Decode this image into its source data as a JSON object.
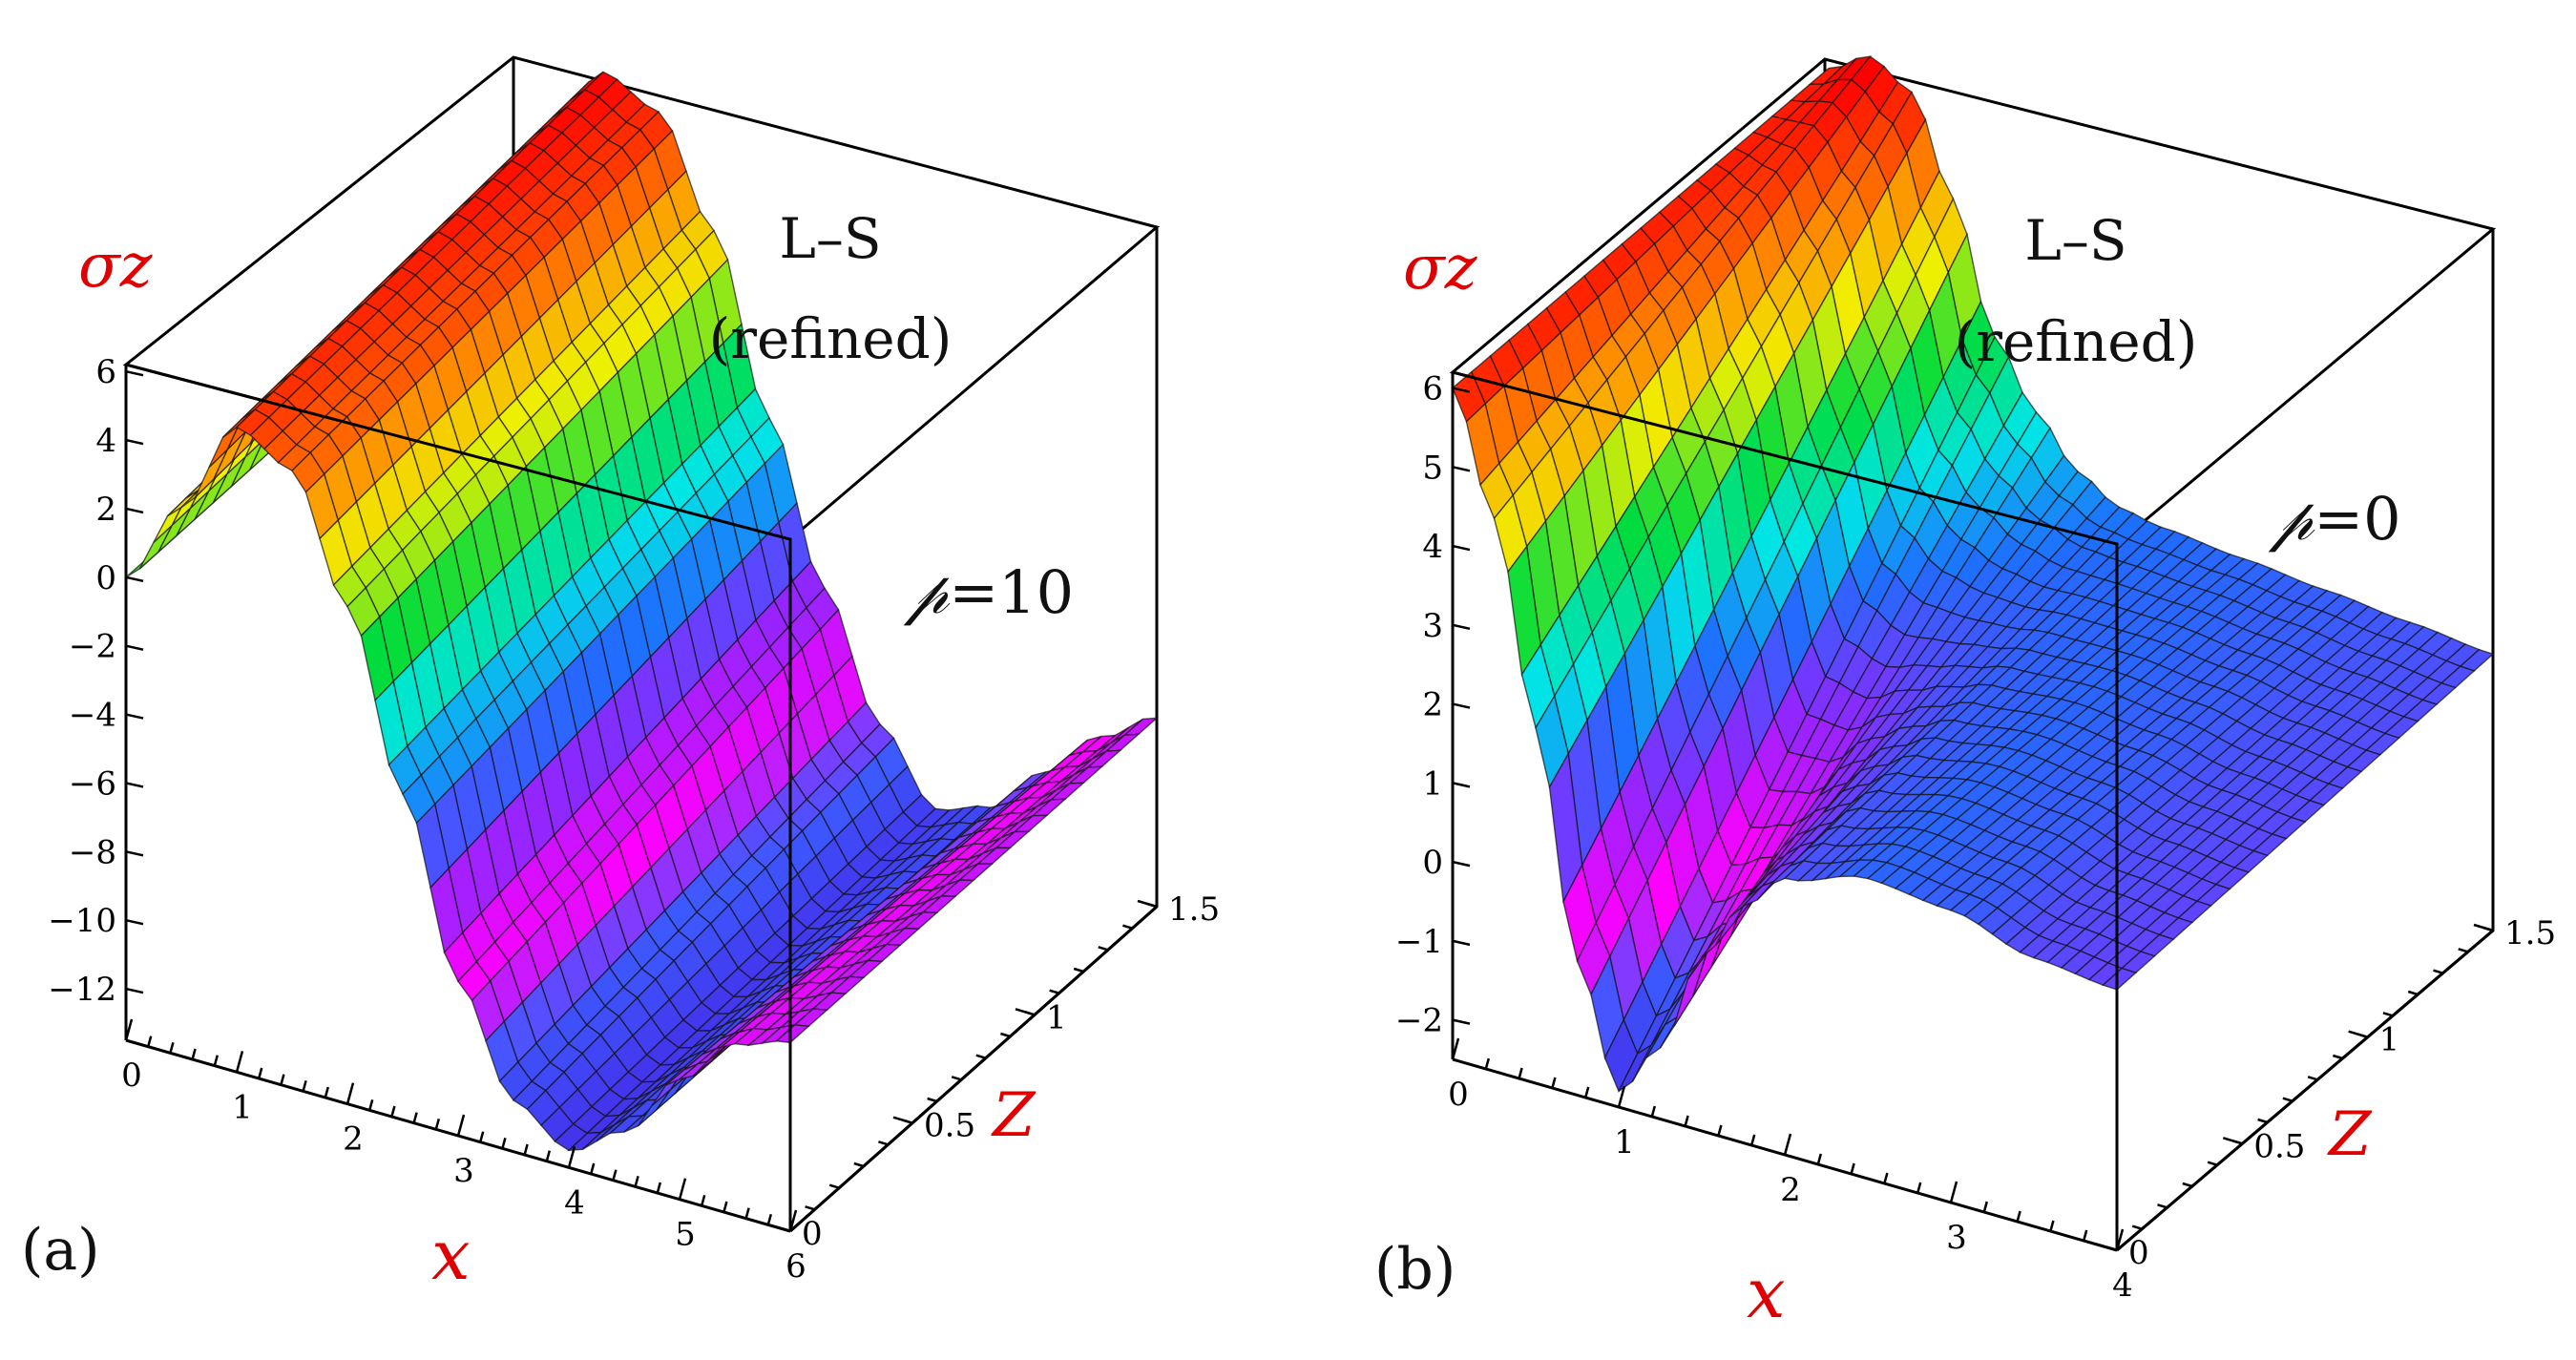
{
  "chart_data": [
    {
      "type": "surface",
      "panel_label": "(a)",
      "zlabel": "σz",
      "xlabel": "x",
      "ylabel": "Z",
      "annotation_lines": [
        "L–S",
        "(refined)"
      ],
      "param_symbol": "𝓅",
      "param_value": "=10",
      "xlim": [
        0,
        6
      ],
      "ylim": [
        0,
        1.5
      ],
      "zlim": [
        -13.5,
        6.2
      ],
      "x_ticks": [
        "0",
        "1",
        "2",
        "3",
        "4",
        "5",
        "6"
      ],
      "y_ticks": [
        "0",
        "0.5",
        "1",
        "1.5"
      ],
      "z_ticks": [
        "6",
        "4",
        "2",
        "0",
        "−2",
        "−4",
        "−6",
        "−8",
        "−10",
        "−12"
      ],
      "surface_profile": {
        "x": [
          0,
          0.5,
          1,
          1.5,
          2,
          2.5,
          3,
          3.5,
          4,
          4.5,
          5,
          5.5,
          6
        ],
        "z_at_y0": [
          0,
          2.5,
          5.3,
          4.5,
          1,
          -4,
          -9,
          -12,
          -13,
          -12,
          -10,
          -8.5,
          -8
        ],
        "z_at_y1_5": [
          0,
          3.5,
          6.2,
          5.5,
          2.5,
          -2.5,
          -7,
          -10.5,
          -12.5,
          -12,
          -10.5,
          -9,
          -8
        ]
      }
    },
    {
      "type": "surface",
      "panel_label": "(b)",
      "zlabel": "σz",
      "xlabel": "x",
      "ylabel": "Z",
      "annotation_lines": [
        "L–S",
        "(refined)"
      ],
      "param_symbol": "𝓅",
      "param_value": "=0",
      "xlim": [
        0,
        4
      ],
      "ylim": [
        0,
        1.5
      ],
      "zlim": [
        -2.5,
        6.2
      ],
      "x_ticks": [
        "0",
        "1",
        "2",
        "3",
        "4"
      ],
      "y_ticks": [
        "0",
        "0.5",
        "1",
        "1.5"
      ],
      "z_ticks": [
        "6",
        "5",
        "4",
        "3",
        "2",
        "1",
        "0",
        "−1",
        "−2"
      ],
      "surface_profile": {
        "x": [
          0,
          0.25,
          0.5,
          0.75,
          1,
          1.25,
          1.5,
          1.75,
          2,
          2.5,
          3,
          3.5,
          4
        ],
        "z_at_y0": [
          6,
          4.5,
          2,
          -0.8,
          -2.3,
          -1.6,
          -0.3,
          0.5,
          1,
          1.3,
          1.2,
          0.9,
          0.8
        ],
        "z_at_y1_5": [
          6,
          6.3,
          6,
          4.8,
          3.2,
          2.4,
          1.8,
          1.5,
          1.4,
          1.3,
          1.2,
          1.1,
          1
        ]
      }
    }
  ]
}
